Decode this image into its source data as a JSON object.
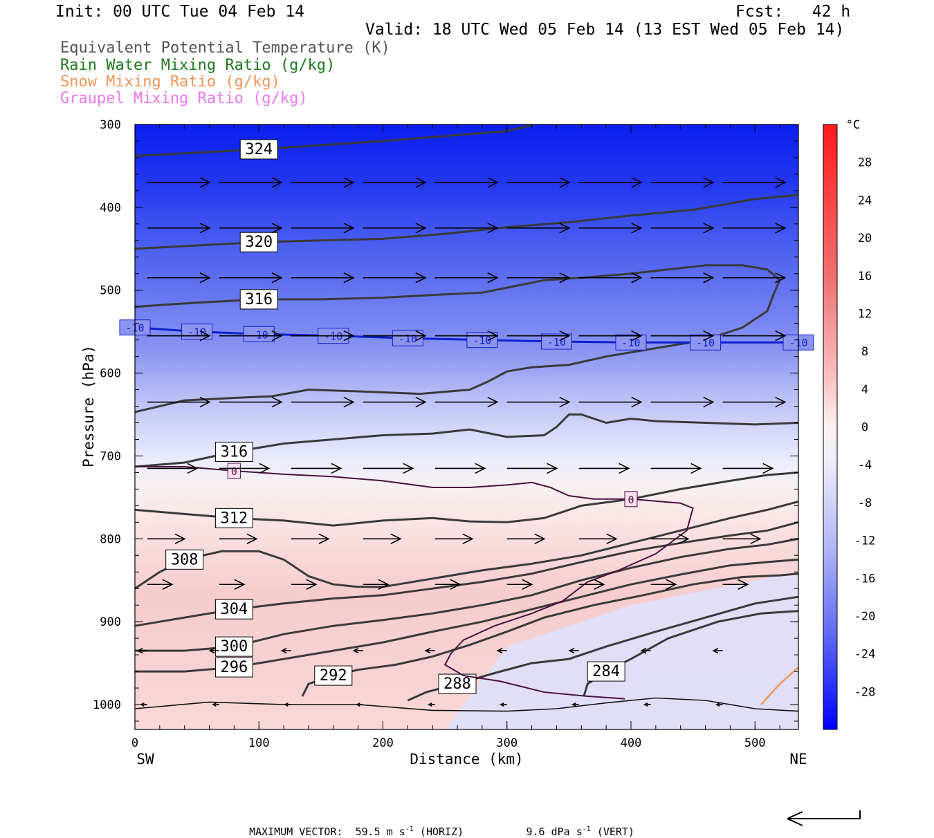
{
  "header": {
    "init": "Init: 00 UTC Tue 04 Feb 14",
    "fcst": "Fcst:   42 h",
    "valid": "Valid: 18 UTC Wed 05 Feb 14 (13 EST Wed 05 Feb 14)"
  },
  "legend": [
    {
      "label": "Equivalent Potential Temperature (K)",
      "color": "#555555"
    },
    {
      "label": "Rain Water Mixing Ratio (g/kg)",
      "color": "#1e7b1e"
    },
    {
      "label": "Snow Mixing Ratio (g/kg)",
      "color": "#f0965a"
    },
    {
      "label": "Graupel Mixing Ratio (g/kg)",
      "color": "#f078f0"
    }
  ],
  "footer": {
    "max_vector_label": "MAXIMUM VECTOR:",
    "horiz_value": "59.5 m s",
    "horiz_unit": "(HORIZ)",
    "vert_value": "9.6 dPa s",
    "vert_unit": "(VERT)",
    "exponent": "-1"
  },
  "chart_data": {
    "type": "cross-section contour",
    "xlabel": "Distance (km)",
    "ylabel": "Pressure (hPa)",
    "xlim": [
      0,
      535
    ],
    "ylim": [
      1030,
      300
    ],
    "x_ticks": [
      0,
      100,
      200,
      300,
      400,
      500
    ],
    "y_ticks": [
      300,
      400,
      500,
      600,
      700,
      800,
      900,
      1000
    ],
    "x_end_labels": {
      "left": "SW",
      "right": "NE"
    },
    "colorbar": {
      "unit": "°C",
      "labels": [
        28,
        24,
        20,
        16,
        12,
        8,
        4,
        0,
        -4,
        -8,
        -12,
        -16,
        -20,
        -24,
        -28
      ],
      "max_color": "#ff1a1a",
      "min_color": "#0000ff"
    },
    "theta_e_contours": [
      {
        "label": "324",
        "points": [
          [
            0,
            338
          ],
          [
            50,
            334
          ],
          [
            100,
            330
          ],
          [
            150,
            325
          ],
          [
            200,
            320
          ],
          [
            250,
            314
          ],
          [
            300,
            308
          ],
          [
            320,
            301
          ]
        ]
      },
      {
        "label": "320",
        "points": [
          [
            0,
            450
          ],
          [
            50,
            446
          ],
          [
            100,
            442
          ],
          [
            150,
            440
          ],
          [
            200,
            438
          ],
          [
            250,
            432
          ],
          [
            300,
            424
          ],
          [
            350,
            418
          ],
          [
            400,
            410
          ],
          [
            450,
            403
          ],
          [
            500,
            390
          ],
          [
            535,
            385
          ]
        ]
      },
      {
        "label": "316",
        "points": [
          [
            0,
            520
          ],
          [
            50,
            515
          ],
          [
            100,
            511
          ],
          [
            150,
            511
          ],
          [
            200,
            509
          ],
          [
            250,
            505
          ],
          [
            280,
            503
          ],
          [
            300,
            497
          ],
          [
            330,
            488
          ],
          [
            360,
            485
          ],
          [
            400,
            480
          ],
          [
            430,
            475
          ],
          [
            460,
            470
          ],
          [
            490,
            470
          ],
          [
            510,
            475
          ],
          [
            520,
            488
          ],
          [
            515,
            505
          ],
          [
            510,
            525
          ],
          [
            490,
            545
          ],
          [
            460,
            560
          ],
          [
            420,
            570
          ],
          [
            380,
            580
          ],
          [
            350,
            590
          ],
          [
            320,
            593
          ],
          [
            300,
            598
          ],
          [
            285,
            610
          ],
          [
            270,
            620
          ],
          [
            230,
            625
          ],
          [
            180,
            622
          ],
          [
            140,
            620
          ],
          [
            110,
            628
          ],
          [
            80,
            630
          ],
          [
            40,
            633
          ],
          [
            0,
            647
          ]
        ]
      },
      {
        "label": "316",
        "points": [
          [
            0,
            713
          ],
          [
            40,
            708
          ],
          [
            80,
            695
          ],
          [
            120,
            685
          ],
          [
            160,
            680
          ],
          [
            200,
            675
          ],
          [
            240,
            673
          ],
          [
            270,
            668
          ],
          [
            300,
            677
          ],
          [
            330,
            675
          ],
          [
            340,
            665
          ],
          [
            350,
            650
          ],
          [
            360,
            650
          ],
          [
            380,
            660
          ],
          [
            400,
            655
          ],
          [
            420,
            658
          ],
          [
            460,
            660
          ],
          [
            500,
            662
          ],
          [
            535,
            660
          ]
        ]
      },
      {
        "label": "312",
        "points": [
          [
            0,
            765
          ],
          [
            40,
            770
          ],
          [
            80,
            775
          ],
          [
            120,
            778
          ],
          [
            160,
            784
          ],
          [
            200,
            778
          ],
          [
            240,
            775
          ],
          [
            270,
            779
          ],
          [
            300,
            780
          ],
          [
            330,
            775
          ],
          [
            360,
            760
          ],
          [
            400,
            752
          ],
          [
            440,
            740
          ],
          [
            480,
            730
          ],
          [
            510,
            723
          ],
          [
            535,
            720
          ]
        ]
      },
      {
        "label": "308",
        "points": [
          [
            0,
            860
          ],
          [
            20,
            840
          ],
          [
            40,
            825
          ],
          [
            70,
            815
          ],
          [
            100,
            815
          ],
          [
            120,
            825
          ],
          [
            140,
            845
          ],
          [
            160,
            855
          ],
          [
            180,
            858
          ],
          [
            200,
            858
          ],
          [
            240,
            848
          ],
          [
            280,
            838
          ],
          [
            320,
            830
          ],
          [
            360,
            820
          ],
          [
            400,
            805
          ],
          [
            440,
            790
          ],
          [
            480,
            775
          ],
          [
            510,
            765
          ],
          [
            535,
            755
          ]
        ]
      },
      {
        "label": "304",
        "points": [
          [
            0,
            905
          ],
          [
            40,
            895
          ],
          [
            80,
            885
          ],
          [
            120,
            878
          ],
          [
            160,
            872
          ],
          [
            200,
            868
          ],
          [
            240,
            860
          ],
          [
            280,
            852
          ],
          [
            320,
            842
          ],
          [
            360,
            828
          ],
          [
            400,
            815
          ],
          [
            440,
            805
          ],
          [
            480,
            796
          ],
          [
            510,
            790
          ],
          [
            535,
            780
          ]
        ]
      },
      {
        "label": "300",
        "points": [
          [
            0,
            935
          ],
          [
            40,
            935
          ],
          [
            80,
            930
          ],
          [
            120,
            915
          ],
          [
            160,
            905
          ],
          [
            200,
            898
          ],
          [
            240,
            890
          ],
          [
            280,
            880
          ],
          [
            320,
            868
          ],
          [
            360,
            850
          ],
          [
            400,
            835
          ],
          [
            440,
            822
          ],
          [
            480,
            812
          ],
          [
            510,
            807
          ],
          [
            535,
            800
          ]
        ]
      },
      {
        "label": "296",
        "points": [
          [
            0,
            960
          ],
          [
            40,
            960
          ],
          [
            80,
            955
          ],
          [
            120,
            945
          ],
          [
            160,
            935
          ],
          [
            200,
            925
          ],
          [
            240,
            912
          ],
          [
            280,
            900
          ],
          [
            320,
            885
          ],
          [
            360,
            870
          ],
          [
            400,
            855
          ],
          [
            440,
            843
          ],
          [
            480,
            832
          ],
          [
            510,
            828
          ],
          [
            535,
            825
          ]
        ]
      },
      {
        "label": "292",
        "points": [
          [
            135,
            990
          ],
          [
            140,
            975
          ],
          [
            160,
            965
          ],
          [
            180,
            958
          ],
          [
            210,
            952
          ],
          [
            240,
            942
          ],
          [
            270,
            928
          ],
          [
            300,
            912
          ],
          [
            330,
            895
          ],
          [
            370,
            880
          ],
          [
            410,
            868
          ],
          [
            450,
            855
          ],
          [
            490,
            846
          ],
          [
            520,
            844
          ],
          [
            535,
            842
          ]
        ]
      },
      {
        "label": "288",
        "points": [
          [
            220,
            995
          ],
          [
            235,
            985
          ],
          [
            260,
            975
          ],
          [
            290,
            962
          ],
          [
            320,
            950
          ],
          [
            350,
            945
          ],
          [
            380,
            930
          ],
          [
            420,
            912
          ],
          [
            460,
            895
          ],
          [
            500,
            878
          ],
          [
            535,
            870
          ]
        ]
      },
      {
        "label": "284",
        "points": [
          [
            362,
            990
          ],
          [
            365,
            975
          ],
          [
            380,
            960
          ],
          [
            400,
            945
          ],
          [
            430,
            920
          ],
          [
            470,
            900
          ],
          [
            505,
            890
          ],
          [
            535,
            887
          ]
        ]
      },
      {
        "label": "",
        "points": [
          [
            0,
            1005
          ],
          [
            60,
            997
          ],
          [
            120,
            1000
          ],
          [
            180,
            1000
          ],
          [
            240,
            1007
          ],
          [
            300,
            1008
          ],
          [
            340,
            1005
          ],
          [
            380,
            998
          ],
          [
            420,
            992
          ],
          [
            460,
            995
          ],
          [
            500,
            1005
          ],
          [
            535,
            1008
          ]
        ]
      }
    ],
    "minus10_isotherm": {
      "label": "-10",
      "points": [
        [
          0,
          545
        ],
        [
          50,
          550
        ],
        [
          100,
          553
        ],
        [
          160,
          555
        ],
        [
          220,
          558
        ],
        [
          280,
          560
        ],
        [
          340,
          562
        ],
        [
          400,
          563
        ],
        [
          460,
          563
        ],
        [
          535,
          563
        ]
      ]
    },
    "zero_isotherm": {
      "label": "0",
      "points": [
        [
          0,
          713
        ],
        [
          40,
          713
        ],
        [
          80,
          718
        ],
        [
          120,
          722
        ],
        [
          160,
          725
        ],
        [
          200,
          730
        ],
        [
          240,
          738
        ],
        [
          270,
          738
        ],
        [
          300,
          735
        ],
        [
          320,
          732
        ],
        [
          335,
          738
        ],
        [
          350,
          748
        ],
        [
          370,
          752
        ],
        [
          400,
          752
        ],
        [
          440,
          757
        ],
        [
          450,
          763
        ],
        [
          445,
          790
        ],
        [
          420,
          818
        ],
        [
          390,
          838
        ],
        [
          365,
          852
        ],
        [
          345,
          875
        ],
        [
          320,
          890
        ],
        [
          290,
          905
        ],
        [
          265,
          922
        ],
        [
          255,
          938
        ],
        [
          250,
          952
        ],
        [
          265,
          965
        ],
        [
          295,
          972
        ],
        [
          330,
          985
        ],
        [
          365,
          990
        ],
        [
          395,
          993
        ]
      ]
    },
    "snow_contour": {
      "points": [
        [
          505,
          1000
        ],
        [
          520,
          975
        ],
        [
          535,
          955
        ]
      ]
    }
  }
}
